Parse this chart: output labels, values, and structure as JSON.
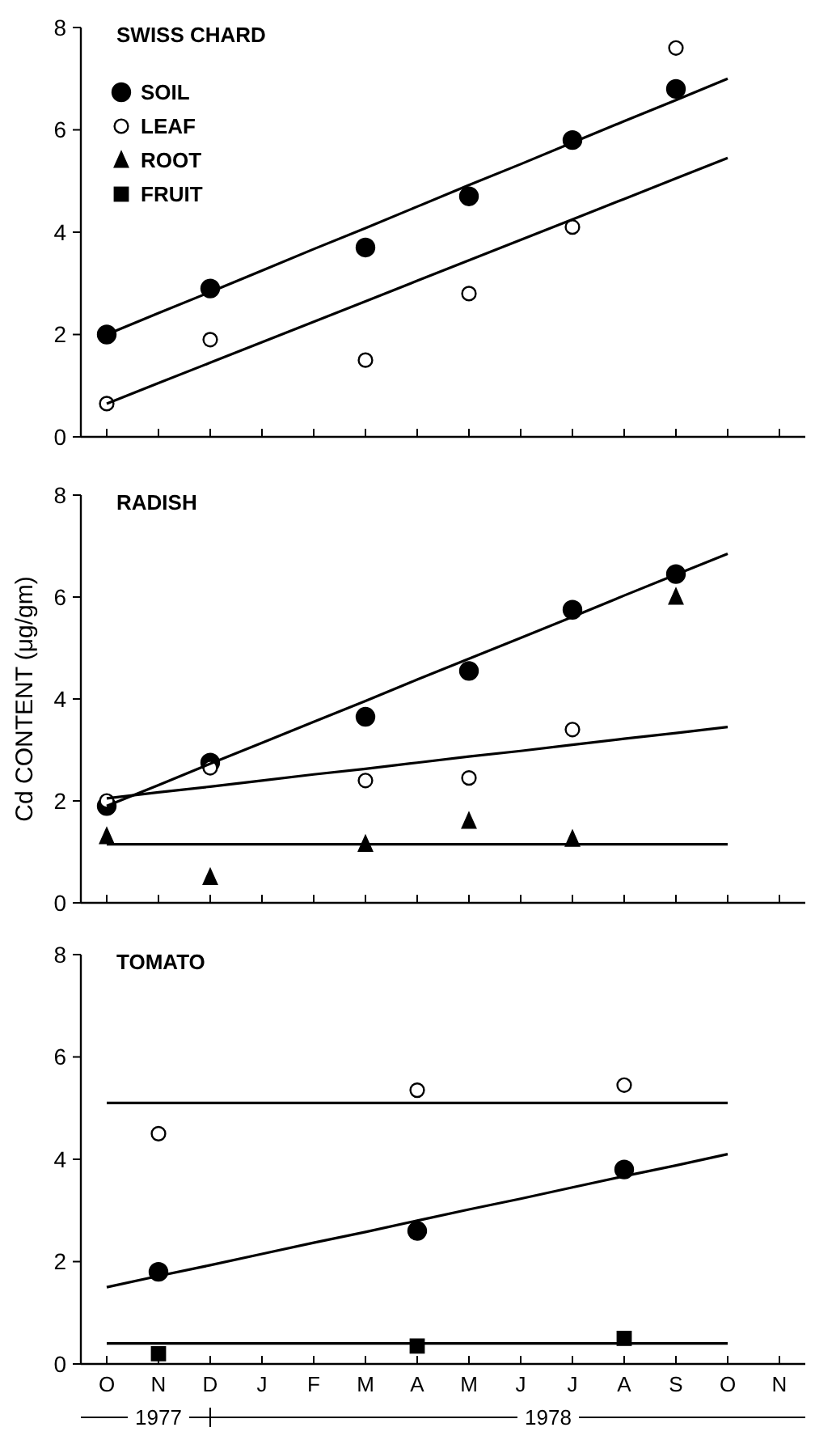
{
  "chart_data": [
    {
      "type": "scatter",
      "title": "SWISS CHARD",
      "ylim": [
        0,
        8
      ],
      "yticks": [
        0,
        2,
        4,
        6,
        8
      ],
      "categories": [
        null,
        null,
        null,
        null,
        null,
        null,
        null,
        null,
        null,
        null,
        null,
        null,
        null,
        null
      ],
      "legend": "top left",
      "series": [
        {
          "name": "SOIL",
          "marker": "circle",
          "color": "#000000",
          "values": [
            2.0,
            null,
            2.9,
            null,
            null,
            3.7,
            null,
            4.7,
            null,
            5.8,
            null,
            6.8,
            null,
            null
          ]
        },
        {
          "name": "LEAF",
          "marker": "circle",
          "color": "#ffffff",
          "values": [
            0.65,
            null,
            1.9,
            null,
            null,
            1.5,
            null,
            2.8,
            null,
            4.1,
            null,
            7.6,
            null,
            null
          ]
        },
        {
          "name": "ROOT",
          "marker": "triangle",
          "color": "#000000",
          "values": [
            null,
            null,
            null,
            null,
            null,
            null,
            null,
            null,
            null,
            null,
            null,
            null,
            null,
            null
          ]
        },
        {
          "name": "FRUIT",
          "marker": "square",
          "color": "#000000",
          "values": [
            null,
            null,
            null,
            null,
            null,
            null,
            null,
            null,
            null,
            null,
            null,
            null,
            null,
            null
          ]
        },
        {
          "type": "line",
          "marker": "none",
          "color": "#000000",
          "values": [
            2.0,
            2.42,
            2.83,
            3.25,
            3.67,
            4.08,
            4.5,
            4.92,
            5.33,
            5.75,
            6.17,
            6.58,
            7.0,
            null
          ]
        },
        {
          "type": "line",
          "marker": "none",
          "color": "#000000",
          "values": [
            0.65,
            1.05,
            1.45,
            1.85,
            2.25,
            2.65,
            3.05,
            3.45,
            3.85,
            4.25,
            4.65,
            5.05,
            5.45,
            null
          ]
        }
      ]
    },
    {
      "type": "scatter",
      "title": "RADISH",
      "ylabel": "Cd CONTENT (μg/gm)",
      "ylim": [
        0,
        8
      ],
      "yticks": [
        0,
        2,
        4,
        6,
        8
      ],
      "categories": [
        null,
        null,
        null,
        null,
        null,
        null,
        null,
        null,
        null,
        null,
        null,
        null,
        null,
        null
      ],
      "series": [
        {
          "marker": "circle",
          "color": "#000000",
          "values": [
            1.9,
            null,
            2.75,
            null,
            null,
            3.65,
            null,
            4.55,
            null,
            5.75,
            null,
            6.45,
            null,
            null
          ]
        },
        {
          "marker": "circle",
          "color": "#ffffff",
          "values": [
            2.0,
            null,
            2.65,
            null,
            null,
            2.4,
            null,
            2.45,
            null,
            3.4,
            null,
            null,
            null,
            null
          ]
        },
        {
          "marker": "triangle",
          "color": "#000000",
          "values": [
            1.3,
            null,
            0.5,
            null,
            null,
            1.15,
            null,
            1.6,
            null,
            1.25,
            null,
            6.0,
            null,
            null
          ]
        },
        {
          "type": "line",
          "marker": "none",
          "color": "#000000",
          "values": [
            1.9,
            2.31,
            2.73,
            3.14,
            3.55,
            3.96,
            4.38,
            4.79,
            5.2,
            5.61,
            6.03,
            6.44,
            6.85,
            null
          ]
        },
        {
          "type": "line",
          "marker": "none",
          "color": "#000000",
          "values": [
            2.05,
            2.17,
            2.28,
            2.4,
            2.52,
            2.63,
            2.75,
            2.87,
            2.98,
            3.1,
            3.22,
            3.33,
            3.45,
            null
          ]
        },
        {
          "type": "line",
          "marker": "none",
          "color": "#000000",
          "values": [
            1.15,
            1.15,
            1.15,
            1.15,
            1.15,
            1.15,
            1.15,
            1.15,
            1.15,
            1.15,
            1.15,
            1.15,
            1.15,
            null
          ]
        }
      ]
    },
    {
      "type": "scatter",
      "title": "TOMATO",
      "ylim": [
        0,
        8
      ],
      "yticks": [
        0,
        2,
        4,
        6,
        8
      ],
      "categories": [
        "O",
        "N",
        "D",
        "J",
        "F",
        "M",
        "A",
        "M",
        "J",
        "J",
        "A",
        "S",
        "O",
        "N"
      ],
      "annotations": [
        "1977",
        "1978"
      ],
      "series": [
        {
          "marker": "circle",
          "color": "#ffffff",
          "values": [
            null,
            4.5,
            null,
            null,
            null,
            null,
            5.35,
            null,
            null,
            null,
            5.45,
            null,
            null,
            null
          ]
        },
        {
          "marker": "circle",
          "color": "#000000",
          "values": [
            null,
            1.8,
            null,
            null,
            null,
            null,
            2.6,
            null,
            null,
            null,
            3.8,
            null,
            null,
            null
          ]
        },
        {
          "marker": "square",
          "color": "#000000",
          "values": [
            null,
            0.2,
            null,
            null,
            null,
            null,
            0.35,
            null,
            null,
            null,
            0.5,
            null,
            null,
            null
          ]
        },
        {
          "type": "line",
          "marker": "none",
          "color": "#000000",
          "values": [
            5.1,
            5.1,
            5.1,
            5.1,
            5.1,
            5.1,
            5.1,
            5.1,
            5.1,
            5.1,
            5.1,
            5.1,
            5.1,
            null
          ]
        },
        {
          "type": "line",
          "marker": "none",
          "color": "#000000",
          "values": [
            1.5,
            1.72,
            1.93,
            2.15,
            2.37,
            2.58,
            2.8,
            3.02,
            3.23,
            3.45,
            3.67,
            3.88,
            4.1,
            null
          ]
        },
        {
          "type": "line",
          "marker": "none",
          "color": "#000000",
          "values": [
            0.4,
            0.4,
            0.4,
            0.4,
            0.4,
            0.4,
            0.4,
            0.4,
            0.4,
            0.4,
            0.4,
            0.4,
            0.4,
            null
          ]
        }
      ]
    }
  ]
}
